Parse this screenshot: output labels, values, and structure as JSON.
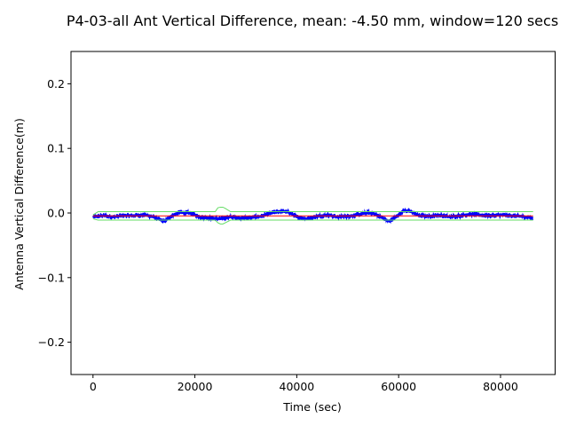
{
  "chart_data": {
    "type": "line",
    "title": "P4-03-all Ant Vertical Difference, mean: -4.50 mm, window=120 secs",
    "xlabel": "Time (sec)",
    "ylabel": "Antenna Vertical Difference(m)",
    "xlim": [
      -4320,
      90720
    ],
    "ylim": [
      -0.25,
      0.25
    ],
    "xticks": [
      0,
      20000,
      40000,
      60000,
      80000
    ],
    "xtick_labels": [
      "0",
      "20000",
      "40000",
      "60000",
      "80000"
    ],
    "yticks": [
      -0.2,
      -0.1,
      0.0,
      0.1,
      0.2
    ],
    "ytick_labels": [
      "−0.2",
      "−0.1",
      "0.0",
      "0.1",
      "0.2"
    ],
    "grid": false,
    "legend": "none",
    "series": [
      {
        "style": "raw",
        "color": "#0000ff",
        "x": [
          0,
          2000,
          4000,
          6000,
          8000,
          10000,
          11500,
          13000,
          14000,
          15500,
          17000,
          19000,
          21000,
          23000,
          25000,
          27000,
          29000,
          31000,
          33000,
          35000,
          37000,
          38500,
          40000,
          42000,
          44000,
          46000,
          48000,
          50000,
          52000,
          54000,
          55500,
          57000,
          58000,
          59500,
          61000,
          62500,
          64000,
          66000,
          68000,
          70000,
          72000,
          74000,
          76000,
          78000,
          80000,
          82000,
          84000,
          86400
        ],
        "values": [
          -0.006,
          -0.004,
          -0.006,
          -0.004,
          -0.004,
          -0.003,
          -0.005,
          -0.01,
          -0.013,
          -0.004,
          0.001,
          0.0,
          -0.006,
          -0.008,
          -0.009,
          -0.006,
          -0.008,
          -0.007,
          -0.005,
          0.0,
          0.003,
          0.001,
          -0.006,
          -0.009,
          -0.005,
          -0.003,
          -0.006,
          -0.005,
          -0.003,
          0.001,
          -0.002,
          -0.008,
          -0.013,
          -0.006,
          0.004,
          0.002,
          -0.004,
          -0.005,
          -0.003,
          -0.006,
          -0.004,
          -0.002,
          -0.003,
          -0.004,
          -0.003,
          -0.004,
          -0.005,
          -0.008
        ],
        "noise": 0.004
      },
      {
        "style": "band",
        "color": "#66dd66",
        "x": [
          0,
          1000,
          24000,
          24500,
          25000,
          25500,
          26000,
          27000,
          86400
        ],
        "upper": [
          -0.003,
          0.002,
          0.002,
          0.008,
          0.009,
          0.009,
          0.007,
          0.002,
          0.002
        ],
        "lower": [
          -0.009,
          -0.011,
          -0.011,
          -0.015,
          -0.017,
          -0.017,
          -0.015,
          -0.011,
          -0.011
        ]
      },
      {
        "style": "mean",
        "color": "#ff0000",
        "x": [
          0,
          86400
        ],
        "values": [
          -0.0045,
          -0.0045
        ]
      }
    ]
  }
}
